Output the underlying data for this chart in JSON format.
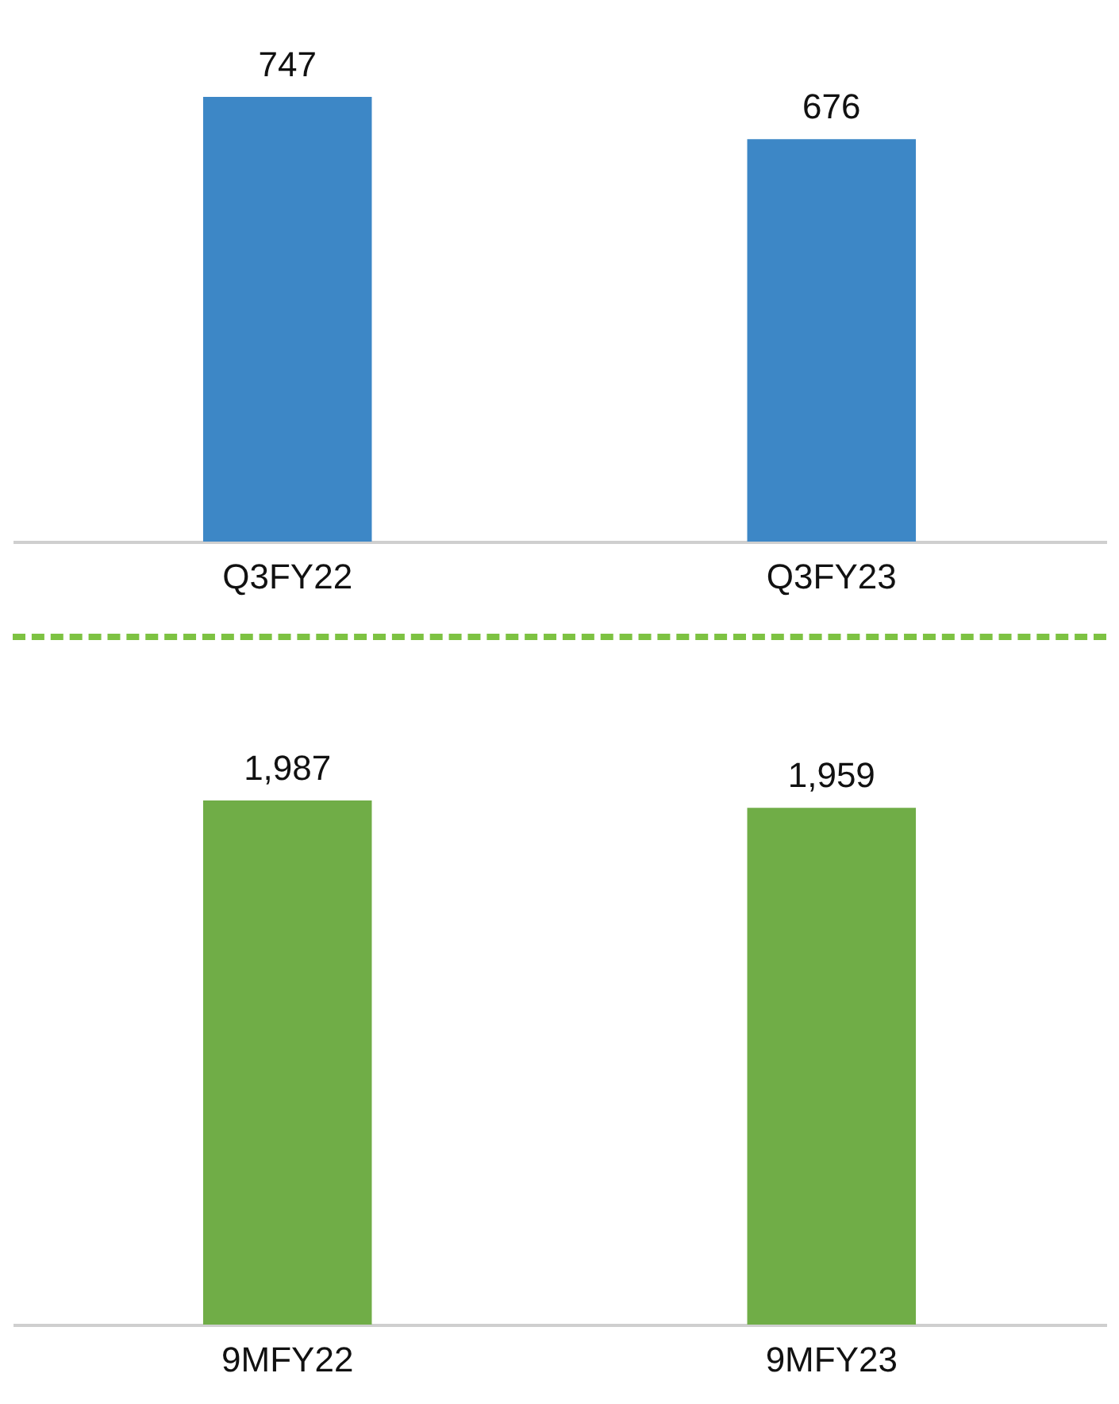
{
  "chart_data": [
    {
      "type": "bar",
      "categories": [
        "Q3FY22",
        "Q3FY23"
      ],
      "values": [
        747,
        676
      ],
      "color": "#3d87c6",
      "data_labels": true
    },
    {
      "type": "bar",
      "categories": [
        "9MFY22",
        "9MFY23"
      ],
      "values": [
        1987,
        1959
      ],
      "color": "#70ad47",
      "value_labels": [
        "1,987",
        "1,959"
      ]
    }
  ]
}
